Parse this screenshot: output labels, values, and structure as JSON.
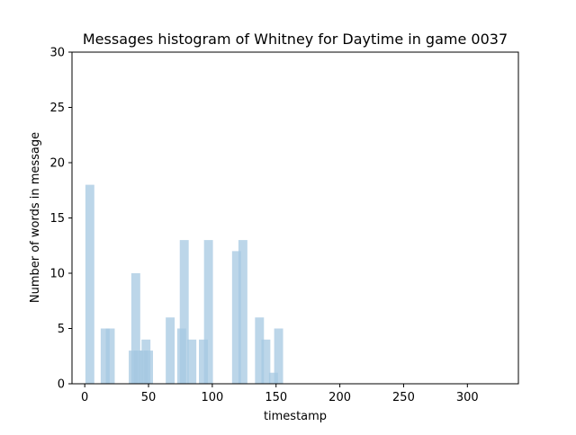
{
  "chart_data": {
    "type": "bar",
    "title": "Messages histogram of Whitney for Daytime in game 0037",
    "xlabel": "timestamp",
    "ylabel": "Number of words in message",
    "xlim": [
      -10,
      340
    ],
    "ylim": [
      0,
      30
    ],
    "x_ticks": [
      0,
      50,
      100,
      150,
      200,
      250,
      300
    ],
    "y_ticks": [
      0,
      5,
      10,
      15,
      20,
      25,
      30
    ],
    "grid": false,
    "bar_color": "#a5c8e1",
    "bar_opacity": 0.75,
    "bar_width": 7,
    "points": [
      {
        "x": 4,
        "y": 18
      },
      {
        "x": 16,
        "y": 5
      },
      {
        "x": 20,
        "y": 5
      },
      {
        "x": 38,
        "y": 3
      },
      {
        "x": 40,
        "y": 10
      },
      {
        "x": 42,
        "y": 3
      },
      {
        "x": 46,
        "y": 3
      },
      {
        "x": 48,
        "y": 4
      },
      {
        "x": 50,
        "y": 3
      },
      {
        "x": 67,
        "y": 6
      },
      {
        "x": 76,
        "y": 5
      },
      {
        "x": 78,
        "y": 13
      },
      {
        "x": 84,
        "y": 4
      },
      {
        "x": 93,
        "y": 4
      },
      {
        "x": 97,
        "y": 13
      },
      {
        "x": 119,
        "y": 12
      },
      {
        "x": 124,
        "y": 13
      },
      {
        "x": 137,
        "y": 6
      },
      {
        "x": 142,
        "y": 4
      },
      {
        "x": 148,
        "y": 1
      },
      {
        "x": 152,
        "y": 5
      }
    ]
  }
}
